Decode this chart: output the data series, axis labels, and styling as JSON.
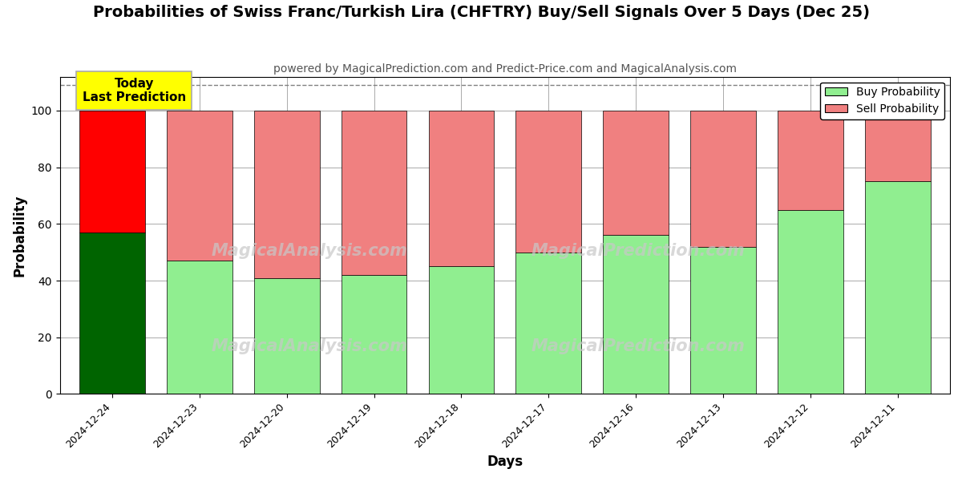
{
  "title": "Probabilities of Swiss Franc/Turkish Lira (CHFTRY) Buy/Sell Signals Over 5 Days (Dec 25)",
  "subtitle": "powered by MagicalPrediction.com and Predict-Price.com and MagicalAnalysis.com",
  "xlabel": "Days",
  "ylabel": "Probability",
  "dates": [
    "2024-12-24",
    "2024-12-23",
    "2024-12-20",
    "2024-12-19",
    "2024-12-18",
    "2024-12-17",
    "2024-12-16",
    "2024-12-13",
    "2024-12-12",
    "2024-12-11"
  ],
  "buy_values": [
    57,
    47,
    41,
    42,
    45,
    50,
    56,
    52,
    65,
    75
  ],
  "sell_values": [
    43,
    53,
    59,
    58,
    55,
    50,
    44,
    48,
    35,
    25
  ],
  "buy_colors": [
    "#006400",
    "#90EE90",
    "#90EE90",
    "#90EE90",
    "#90EE90",
    "#90EE90",
    "#90EE90",
    "#90EE90",
    "#90EE90",
    "#90EE90"
  ],
  "sell_colors": [
    "#FF0000",
    "#F08080",
    "#F08080",
    "#F08080",
    "#F08080",
    "#F08080",
    "#F08080",
    "#F08080",
    "#F08080",
    "#F08080"
  ],
  "today_label": "Today\nLast Prediction",
  "today_label_bg": "#FFFF00",
  "today_label_fg": "#000000",
  "ylim": [
    0,
    112
  ],
  "yticks": [
    0,
    20,
    40,
    60,
    80,
    100
  ],
  "dashed_line_y": 109,
  "legend_buy_label": "Buy Probability",
  "legend_sell_label": "Sell Probability",
  "legend_buy_color": "#90EE90",
  "legend_sell_color": "#F08080",
  "background_color": "#FFFFFF",
  "grid_color": "#AAAAAA",
  "title_fontsize": 14,
  "subtitle_fontsize": 10,
  "bar_width": 0.75
}
